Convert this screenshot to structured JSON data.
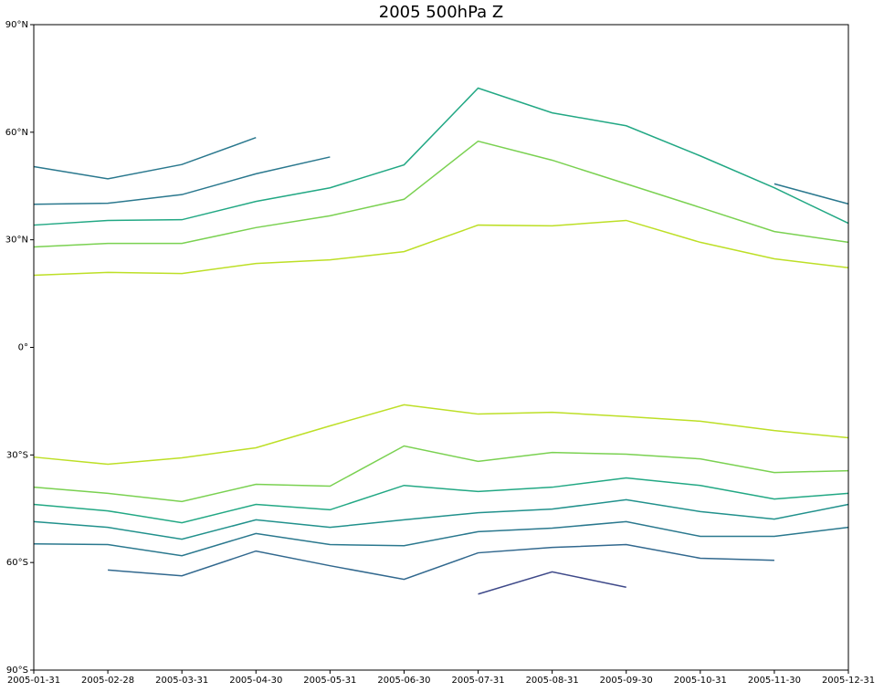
{
  "chart_data": {
    "type": "line",
    "title": "2005 500hPa Z",
    "categories": [
      "2005-01-31",
      "2005-02-28",
      "2005-03-31",
      "2005-04-30",
      "2005-05-31",
      "2005-06-30",
      "2005-07-31",
      "2005-08-31",
      "2005-09-30",
      "2005-10-31",
      "2005-11-30",
      "2005-12-31"
    ],
    "ylim": [
      -90,
      90
    ],
    "yticks": [
      {
        "value": -90,
        "label": "90°S"
      },
      {
        "value": -60,
        "label": "60°S"
      },
      {
        "value": -30,
        "label": "30°S"
      },
      {
        "value": 0,
        "label": "0°"
      },
      {
        "value": 30,
        "label": "30°N"
      },
      {
        "value": 60,
        "label": "60°N"
      },
      {
        "value": 90,
        "label": "90°N"
      }
    ],
    "series": [
      {
        "color": "#bddf26",
        "values": [
          20.1,
          20.9,
          20.6,
          23.4,
          24.4,
          26.7,
          34.1,
          33.9,
          35.4,
          29.3,
          24.7,
          22.2
        ]
      },
      {
        "color": "#7ad151",
        "values": [
          28.0,
          29.0,
          29.0,
          33.4,
          36.7,
          41.3,
          57.5,
          52.2,
          45.6,
          39.0,
          32.3,
          29.3
        ]
      },
      {
        "color": "#22a884",
        "values": [
          34.1,
          35.4,
          35.6,
          40.7,
          44.5,
          50.9,
          72.3,
          65.4,
          61.8,
          53.4,
          44.5,
          34.6
        ]
      },
      {
        "color": "#2a788e",
        "values": [
          39.9,
          40.2,
          42.6,
          48.4,
          53.1,
          null,
          null,
          null,
          null,
          null,
          45.6,
          40.0
        ]
      },
      {
        "color": "#2a788e",
        "values": [
          50.4,
          47.0,
          51.0,
          58.5,
          null,
          null,
          null,
          null,
          null,
          null,
          null,
          null
        ]
      },
      {
        "color": "#bddf26",
        "values": [
          -30.6,
          -32.6,
          -30.8,
          -28.0,
          -21.9,
          -16.0,
          -18.6,
          -18.1,
          -19.3,
          -20.6,
          -23.2,
          -25.2
        ]
      },
      {
        "color": "#7ad151",
        "values": [
          -39.0,
          -40.7,
          -43.0,
          -38.2,
          -38.7,
          -27.5,
          -31.8,
          -29.3,
          -29.8,
          -31.1,
          -34.9,
          -34.4
        ]
      },
      {
        "color": "#22a884",
        "values": [
          -43.8,
          -45.6,
          -48.9,
          -43.8,
          -45.3,
          -38.5,
          -40.2,
          -39.0,
          -36.4,
          -38.5,
          -42.3,
          -40.7
        ]
      },
      {
        "color": "#21918c",
        "values": [
          -48.6,
          -50.2,
          -53.5,
          -48.1,
          -50.2,
          -48.1,
          -46.1,
          -45.1,
          -42.5,
          -45.8,
          -47.9,
          -43.8
        ]
      },
      {
        "color": "#2a788e",
        "values": [
          -54.8,
          -55.0,
          -58.1,
          -51.9,
          -55.0,
          -55.3,
          -51.4,
          -50.4,
          -48.6,
          -52.7,
          -52.7,
          -50.2
        ]
      },
      {
        "color": "#31688e",
        "values": [
          null,
          -62.1,
          -63.7,
          -56.8,
          -60.9,
          -64.7,
          -57.3,
          -55.8,
          -55.0,
          -58.8,
          -59.4,
          null
        ]
      },
      {
        "color": "#3e4989",
        "values": [
          null,
          null,
          null,
          null,
          null,
          null,
          -68.8,
          -62.6,
          -66.9,
          null,
          null,
          null
        ]
      }
    ]
  }
}
